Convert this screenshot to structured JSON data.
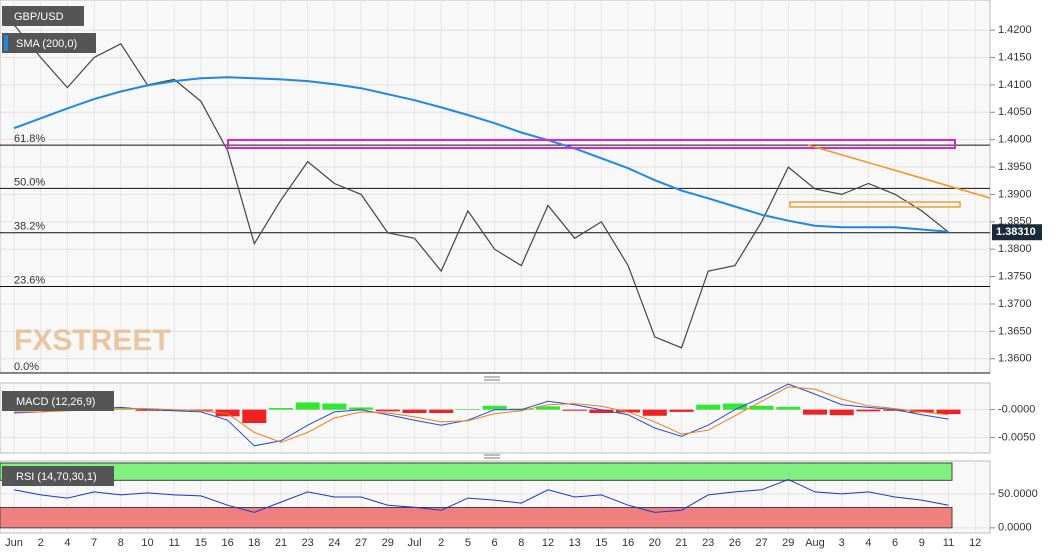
{
  "chart_data": [
    {
      "type": "line",
      "title": "GBP/USD",
      "categories": [
        "Jun",
        "2",
        "4",
        "7",
        "8",
        "10",
        "11",
        "15",
        "16",
        "18",
        "21",
        "23",
        "24",
        "27",
        "29",
        "Jul",
        "2",
        "5",
        "6",
        "8",
        "12",
        "13",
        "15",
        "16",
        "20",
        "21",
        "23",
        "26",
        "27",
        "29",
        "Aug",
        "3",
        "4",
        "6",
        "9",
        "11",
        "12"
      ],
      "ylim": [
        1.3574,
        1.4255
      ],
      "yticks": [
        {
          "value": 1.42,
          "label": "1.4200"
        },
        {
          "value": 1.415,
          "label": "1.4150"
        },
        {
          "value": 1.41,
          "label": "1.4100"
        },
        {
          "value": 1.405,
          "label": "1.4050"
        },
        {
          "value": 1.4,
          "label": "1.4000"
        },
        {
          "value": 1.395,
          "label": "1.3950"
        },
        {
          "value": 1.39,
          "label": "1.3900"
        },
        {
          "value": 1.385,
          "label": "1.3850"
        },
        {
          "value": 1.38,
          "label": "1.3800"
        },
        {
          "value": 1.375,
          "label": "1.3750"
        },
        {
          "value": 1.37,
          "label": "1.3700"
        },
        {
          "value": 1.365,
          "label": "1.3650"
        },
        {
          "value": 1.36,
          "label": "1.3600"
        }
      ],
      "grid": true,
      "series": [
        {
          "color": "#444444",
          "values": [
            1.421,
            1.415,
            1.4095,
            1.415,
            1.4175,
            1.41,
            1.411,
            1.407,
            1.398,
            1.381,
            1.389,
            1.396,
            1.392,
            1.39,
            1.383,
            1.382,
            1.376,
            1.387,
            1.38,
            1.377,
            1.388,
            1.382,
            1.385,
            1.377,
            1.364,
            1.362,
            1.376,
            1.377,
            1.385,
            1.395,
            1.391,
            1.39,
            1.392,
            1.39,
            1.387,
            1.3831,
            null
          ]
        },
        {
          "name": "SMA (200,0)",
          "color": "#1e88e5",
          "values": [
            1.4021,
            1.4039,
            1.4057,
            1.4074,
            1.4088,
            1.4099,
            1.4107,
            1.4112,
            1.4114,
            1.4112,
            1.411,
            1.4107,
            1.4101,
            1.4094,
            1.4083,
            1.4072,
            1.4059,
            1.4045,
            1.403,
            1.4013,
            1.3999,
            1.3984,
            1.3966,
            1.3948,
            1.3926,
            1.3907,
            1.3893,
            1.3878,
            1.3863,
            1.3852,
            1.3843,
            1.384,
            1.384,
            1.384,
            1.3836,
            1.3832,
            null
          ]
        }
      ],
      "fib_levels": [
        {
          "label": "61.8%",
          "value": 1.399
        },
        {
          "label": "50.0%",
          "value": 1.3911
        },
        {
          "label": "38.2%",
          "value": 1.383
        },
        {
          "label": "23.6%",
          "value": 1.3732
        },
        {
          "label": "0.0%",
          "value": 1.3574
        }
      ],
      "last_price": {
        "value": 1.3831,
        "label": "1.38310"
      },
      "watermark": "FXSTREET"
    },
    {
      "type": "macd",
      "title": "MACD (12,26,9)",
      "ylim": [
        -0.0078,
        0.0048
      ],
      "yticks": [
        {
          "value": 0,
          "label": "-0.0000"
        },
        {
          "value": -0.005,
          "label": "-0.0050"
        }
      ],
      "series": [
        {
          "color": "#1e4fd8",
          "values": [
            -0.0006,
            -0.0004,
            0,
            0.0002,
            0.0004,
            0,
            -0.0002,
            -0.0004,
            -0.0019,
            -0.0065,
            -0.0056,
            -0.0028,
            -0.0004,
            0,
            -0.0009,
            -0.0019,
            -0.0028,
            -0.0019,
            0,
            0,
            0.0015,
            0.0009,
            0,
            -0.0009,
            -0.0033,
            -0.0048,
            -0.0028,
            0,
            0.0022,
            0.0046,
            0.0028,
            0.0009,
            0.0004,
            0,
            -0.0009,
            -0.0017,
            null
          ]
        },
        {
          "color": "#f07d1a",
          "values": [
            -0.0004,
            -0.0004,
            -0.0002,
            0,
            0.0002,
            0.0002,
            0,
            -0.0002,
            -0.0007,
            -0.0041,
            -0.0059,
            -0.0041,
            -0.0015,
            -0.0004,
            -0.0006,
            -0.0013,
            -0.0022,
            -0.002,
            -0.0007,
            -0.0002,
            0.0009,
            0.0011,
            0.0006,
            -0.0004,
            -0.0022,
            -0.0044,
            -0.0037,
            -0.0011,
            0.0015,
            0.0041,
            0.0037,
            0.0019,
            0.0007,
            0.0002,
            -0.0004,
            -0.0009,
            null
          ]
        }
      ],
      "histogram": {
        "up_color": "#33e633",
        "down_color": "#ee2222",
        "values": [
          -0.0002,
          0,
          0.0002,
          0.0002,
          0.0002,
          -0.0002,
          -0.0002,
          -0.0002,
          -0.0012,
          -0.0024,
          0.0003,
          0.0013,
          0.0011,
          0.0004,
          -0.0003,
          -0.0006,
          -0.0006,
          0.0001,
          0.0007,
          0.0002,
          0.0006,
          -0.0002,
          -0.0006,
          -0.0005,
          -0.0011,
          -0.0004,
          0.0009,
          0.0011,
          0.0007,
          0.0005,
          -0.0009,
          -0.001,
          -0.0003,
          -0.0002,
          -0.0005,
          -0.0008,
          null
        ]
      }
    },
    {
      "type": "rsi",
      "title": "RSI (14,70,30,1)",
      "ylim": [
        -7.6,
        98.5
      ],
      "yticks": [
        {
          "value": 50,
          "label": "50.0000"
        },
        {
          "value": 0,
          "label": "0.0000"
        }
      ],
      "overbought": 70,
      "oversold": 30,
      "color": "#2233cc",
      "values": [
        56.1,
        48.5,
        43.9,
        53.0,
        48.5,
        51.5,
        48.5,
        47.0,
        33.3,
        22.7,
        37.9,
        53.0,
        45.5,
        45.5,
        33.3,
        30.3,
        25.8,
        43.9,
        40.9,
        36.4,
        56.1,
        45.5,
        48.5,
        33.3,
        22.7,
        25.8,
        48.5,
        53.0,
        56.1,
        71.2,
        53.0,
        50.0,
        53.0,
        45.5,
        40.9,
        33.3,
        null
      ]
    }
  ]
}
